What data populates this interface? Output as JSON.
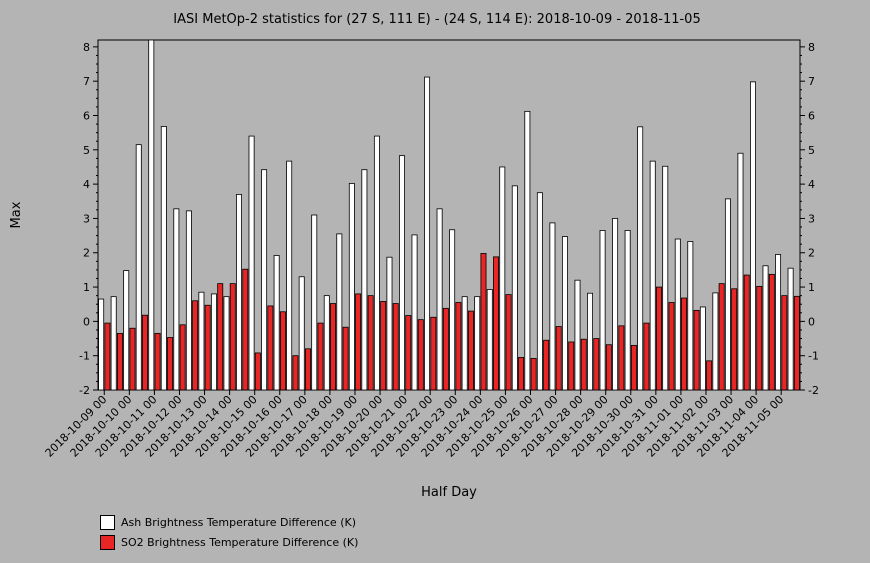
{
  "chart_data": {
    "type": "bar",
    "title": "IASI MetOp-2 statistics for (27 S, 111 E) - (24 S, 114 E): 2018-10-09 - 2018-11-05",
    "xlabel": "Half Day",
    "ylabel": "Max",
    "ylim": [
      -2,
      8.2
    ],
    "yticks": [
      -2,
      -1,
      0,
      1,
      2,
      3,
      4,
      5,
      6,
      7,
      8
    ],
    "tick_labels": [
      "2018-10-09 00",
      "2018-10-10 00",
      "2018-10-11 00",
      "2018-10-12 00",
      "2018-10-13 00",
      "2018-10-14 00",
      "2018-10-15 00",
      "2018-10-16 00",
      "2018-10-17 00",
      "2018-10-18 00",
      "2018-10-19 00",
      "2018-10-20 00",
      "2018-10-21 00",
      "2018-10-22 00",
      "2018-10-23 00",
      "2018-10-24 00",
      "2018-10-25 00",
      "2018-10-26 00",
      "2018-10-27 00",
      "2018-10-28 00",
      "2018-10-29 00",
      "2018-10-30 00",
      "2018-10-31 00",
      "2018-11-01 00",
      "2018-11-02 00",
      "2018-11-03 00",
      "2018-11-04 00",
      "2018-11-05 00"
    ],
    "bars_per_tick": 2,
    "series": [
      {
        "name": "Ash Brightness Temperature Difference (K)",
        "color": "#ffffff",
        "values": [
          0.65,
          0.72,
          1.48,
          5.15,
          8.2,
          5.68,
          3.28,
          3.22,
          0.85,
          0.8,
          0.72,
          3.7,
          5.4,
          4.42,
          1.92,
          4.67,
          1.3,
          3.1,
          0.75,
          2.55,
          4.02,
          4.42,
          5.4,
          1.87,
          4.83,
          2.52,
          7.12,
          3.28,
          2.67,
          0.72,
          0.72,
          0.93,
          4.5,
          3.95,
          6.12,
          3.75,
          2.87,
          2.47,
          1.2,
          0.82,
          2.65,
          3.0,
          2.65,
          5.67,
          4.67,
          4.52,
          2.4,
          2.33,
          0.42,
          0.83,
          3.57,
          4.9,
          6.98,
          1.62,
          1.95,
          1.55
        ]
      },
      {
        "name": "SO2 Brightness Temperature Difference (K)",
        "color": "#e82626",
        "values": [
          -0.05,
          -0.35,
          -0.2,
          0.18,
          -0.35,
          -0.47,
          -0.1,
          0.6,
          0.47,
          1.1,
          1.1,
          1.52,
          -0.92,
          0.45,
          0.28,
          -1.0,
          -0.8,
          -0.05,
          0.52,
          -0.17,
          0.8,
          0.75,
          0.58,
          0.52,
          0.17,
          0.05,
          0.12,
          0.38,
          0.55,
          0.3,
          1.98,
          1.88,
          0.78,
          -1.05,
          -1.08,
          -0.55,
          -0.15,
          -0.6,
          -0.52,
          -0.5,
          -0.68,
          -0.13,
          -0.7,
          -0.05,
          1.0,
          0.55,
          0.68,
          0.32,
          -1.15,
          1.1,
          0.95,
          1.35,
          1.02,
          1.37,
          0.75,
          0.73
        ]
      }
    ],
    "legend_position": "bottom-left"
  }
}
